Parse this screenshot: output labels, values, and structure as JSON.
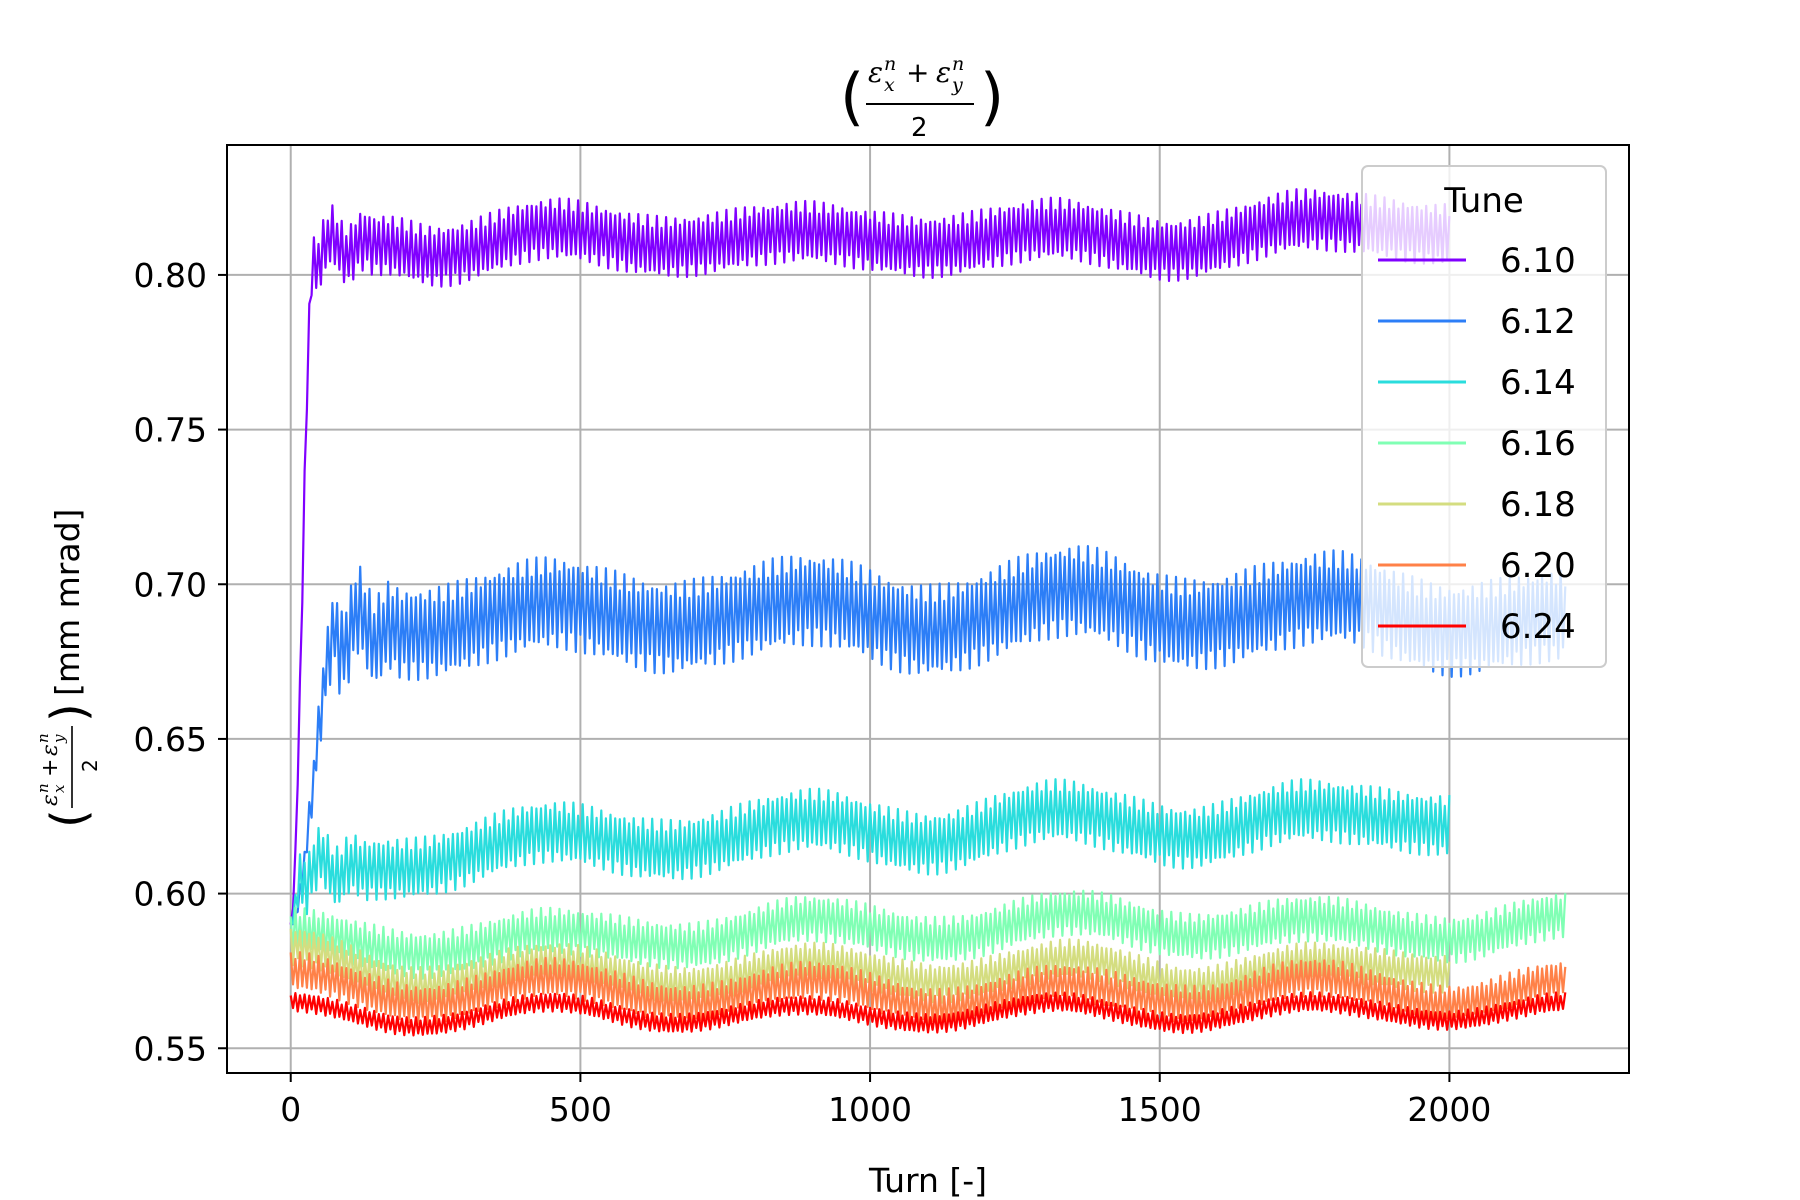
{
  "chart_data": {
    "type": "line",
    "title": "(εxn + εyn)/2",
    "title_parts": {
      "eps": "ε",
      "sub_x": "x",
      "sub_y": "y",
      "sup": "n",
      "plus": "+",
      "denom": "2",
      "lparen": "(",
      "rparen": ")"
    },
    "xlabel": "Turn [-]",
    "ylabel_unit": "[mm mrad]",
    "xlim": [
      -110,
      2310
    ],
    "ylim": [
      0.542,
      0.842
    ],
    "x_ticks": [
      0,
      500,
      1000,
      1500,
      2000
    ],
    "x_tick_labels": [
      "0",
      "500",
      "1000",
      "1500",
      "2000"
    ],
    "y_ticks": [
      0.55,
      0.6,
      0.65,
      0.7,
      0.75,
      0.8
    ],
    "y_tick_labels": [
      "0.55",
      "0.60",
      "0.65",
      "0.70",
      "0.75",
      "0.80"
    ],
    "grid": true,
    "legend": {
      "title": "Tune",
      "placement": "top-right"
    },
    "series": [
      {
        "name": "6.10",
        "color": "#8000ff",
        "x_end": 2000,
        "start": 0.59,
        "rise_turns": 40,
        "mean": 0.812,
        "band": 0.016,
        "trend": [
          [
            0,
            0.59
          ],
          [
            40,
            0.808
          ],
          [
            150,
            0.81
          ],
          [
            250,
            0.806
          ],
          [
            450,
            0.815
          ],
          [
            650,
            0.809
          ],
          [
            880,
            0.814
          ],
          [
            1100,
            0.809
          ],
          [
            1320,
            0.815
          ],
          [
            1520,
            0.808
          ],
          [
            1760,
            0.818
          ],
          [
            2000,
            0.813
          ]
        ]
      },
      {
        "name": "6.12",
        "color": "#2c7ef7",
        "x_end": 2200,
        "start": 0.59,
        "rise_turns": 80,
        "mean": 0.689,
        "band": 0.024,
        "trend": [
          [
            0,
            0.59
          ],
          [
            80,
            0.686
          ],
          [
            220,
            0.684
          ],
          [
            450,
            0.694
          ],
          [
            650,
            0.686
          ],
          [
            900,
            0.695
          ],
          [
            1100,
            0.685
          ],
          [
            1350,
            0.698
          ],
          [
            1550,
            0.687
          ],
          [
            1800,
            0.696
          ],
          [
            2000,
            0.685
          ],
          [
            2200,
            0.69
          ]
        ]
      },
      {
        "name": "6.14",
        "color": "#2adddd",
        "x_end": 2000,
        "start": 0.59,
        "rise_turns": 20,
        "mean": 0.618,
        "band": 0.016,
        "trend": [
          [
            0,
            0.59
          ],
          [
            20,
            0.608
          ],
          [
            200,
            0.608
          ],
          [
            450,
            0.62
          ],
          [
            650,
            0.614
          ],
          [
            900,
            0.624
          ],
          [
            1100,
            0.616
          ],
          [
            1320,
            0.627
          ],
          [
            1550,
            0.618
          ],
          [
            1750,
            0.627
          ],
          [
            2000,
            0.622
          ]
        ]
      },
      {
        "name": "6.16",
        "color": "#80ffb4",
        "x_end": 2200,
        "start": 0.59,
        "rise_turns": 0,
        "mean": 0.587,
        "band": 0.012,
        "trend": [
          [
            0,
            0.588
          ],
          [
            230,
            0.58
          ],
          [
            450,
            0.588
          ],
          [
            680,
            0.583
          ],
          [
            900,
            0.592
          ],
          [
            1120,
            0.585
          ],
          [
            1350,
            0.594
          ],
          [
            1560,
            0.586
          ],
          [
            1760,
            0.592
          ],
          [
            2000,
            0.585
          ],
          [
            2200,
            0.593
          ]
        ]
      },
      {
        "name": "6.18",
        "color": "#d4dd80",
        "x_end": 2000,
        "start": 0.585,
        "rise_turns": 0,
        "mean": 0.573,
        "band": 0.01,
        "trend": [
          [
            0,
            0.583
          ],
          [
            220,
            0.57
          ],
          [
            450,
            0.578
          ],
          [
            680,
            0.57
          ],
          [
            900,
            0.578
          ],
          [
            1120,
            0.571
          ],
          [
            1350,
            0.579
          ],
          [
            1560,
            0.57
          ],
          [
            1760,
            0.578
          ],
          [
            2000,
            0.574
          ]
        ]
      },
      {
        "name": "6.20",
        "color": "#ff8148",
        "x_end": 2200,
        "start": 0.578,
        "rise_turns": 0,
        "mean": 0.568,
        "band": 0.01,
        "trend": [
          [
            0,
            0.575
          ],
          [
            230,
            0.564
          ],
          [
            450,
            0.573
          ],
          [
            680,
            0.564
          ],
          [
            900,
            0.572
          ],
          [
            1120,
            0.563
          ],
          [
            1330,
            0.571
          ],
          [
            1560,
            0.564
          ],
          [
            1760,
            0.573
          ],
          [
            2000,
            0.564
          ],
          [
            2200,
            0.572
          ]
        ]
      },
      {
        "name": "6.24",
        "color": "#ff0000",
        "x_end": 2200,
        "start": 0.566,
        "rise_turns": 0,
        "mean": 0.561,
        "band": 0.005,
        "trend": [
          [
            0,
            0.565
          ],
          [
            220,
            0.557
          ],
          [
            450,
            0.565
          ],
          [
            660,
            0.558
          ],
          [
            880,
            0.564
          ],
          [
            1100,
            0.558
          ],
          [
            1320,
            0.565
          ],
          [
            1540,
            0.558
          ],
          [
            1760,
            0.565
          ],
          [
            2000,
            0.559
          ],
          [
            2200,
            0.565
          ]
        ]
      }
    ]
  }
}
